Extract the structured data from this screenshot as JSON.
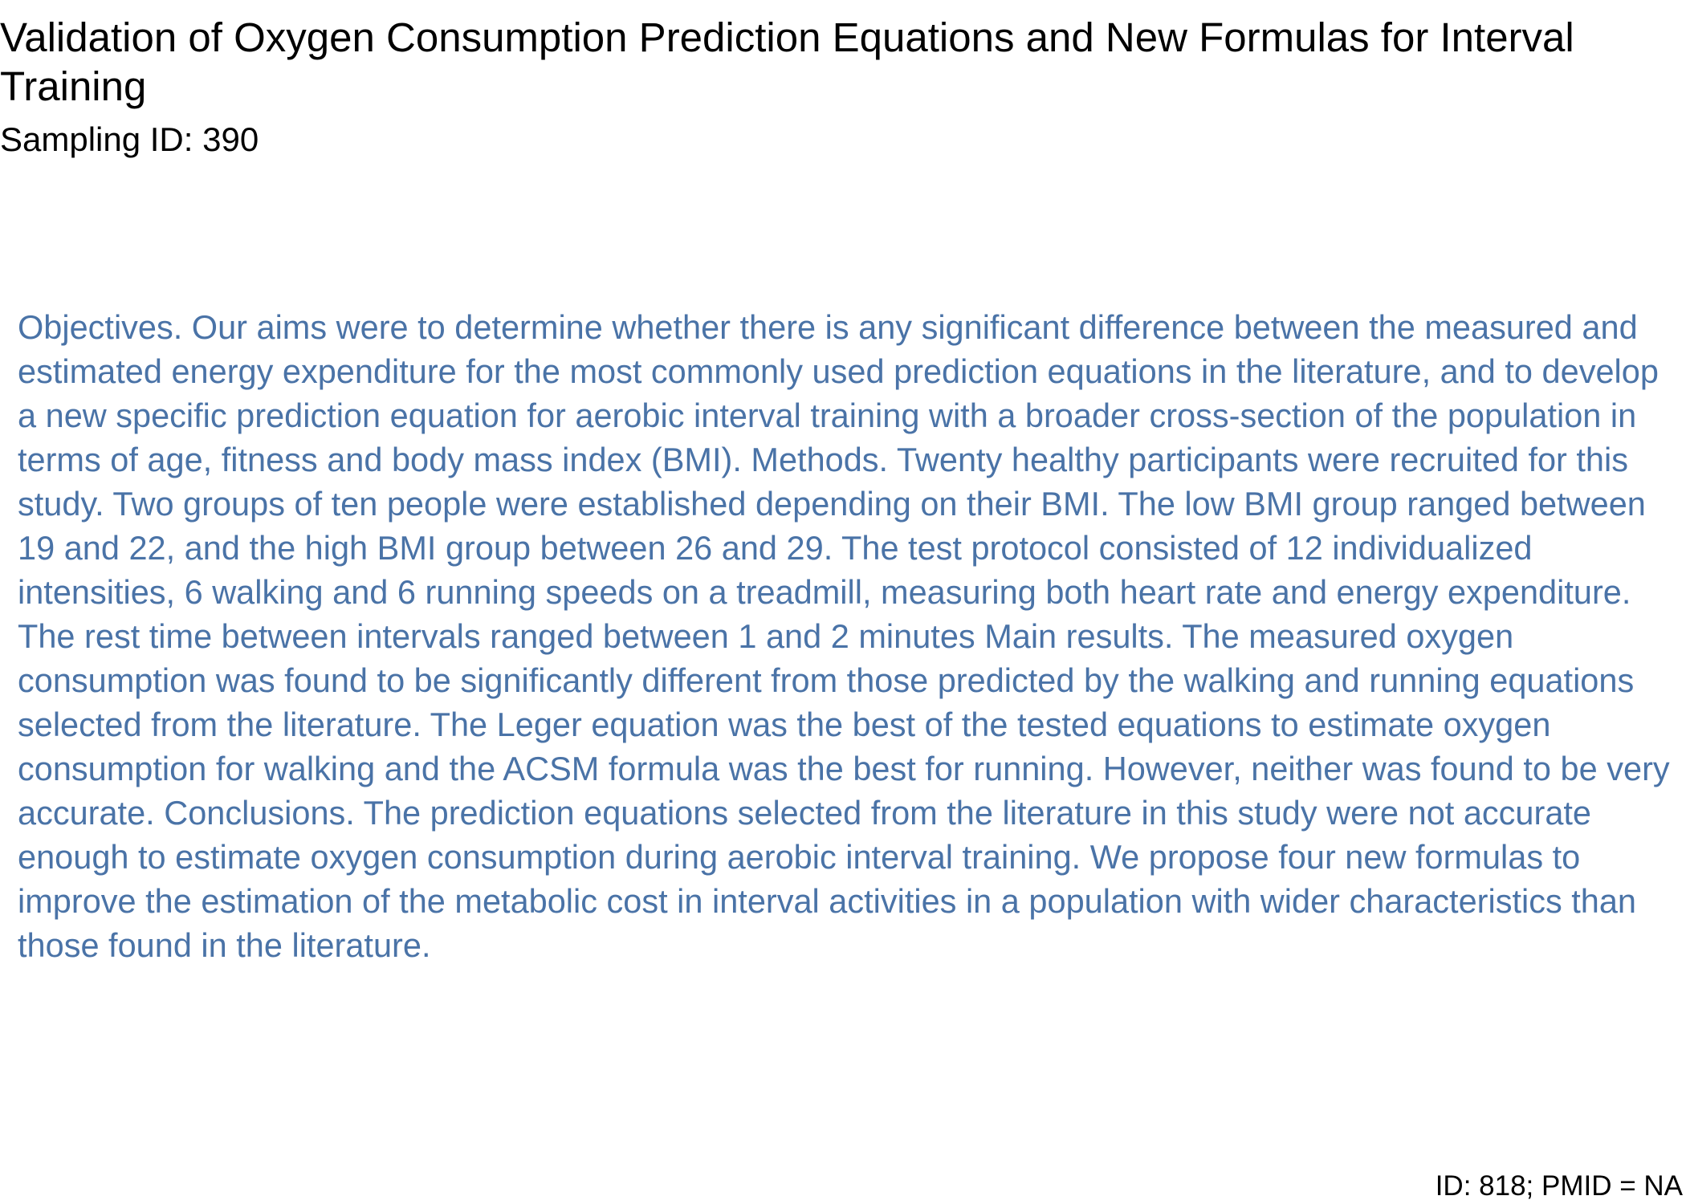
{
  "paper": {
    "title": "Validation of Oxygen Consumption Prediction Equations and New Formulas for Interval Training",
    "sampling_id": "Sampling ID: 390",
    "abstract": "Objectives. Our aims were to determine whether there is any significant difference between the measured and estimated energy expenditure for the most commonly used prediction equations in the literature, and to develop a new specific prediction equation for aerobic interval training with a broader cross-section of the population in terms of age, fitness and body mass index (BMI). Methods. Twenty healthy participants were recruited for this study. Two groups of ten people were established depending on their BMI. The low BMI group ranged between 19 and 22, and the high BMI group between 26 and 29. The test protocol consisted of 12 individualized intensities, 6 walking and 6 running speeds on a treadmill, measuring both heart rate and energy expenditure. The rest time between intervals ranged between 1 and 2 minutes Main results. The measured oxygen consumption was found to be significantly different from those predicted by the walking and running equations selected from the literature. The Leger equation was the best of the tested equations to estimate oxygen consumption for walking and the ACSM formula was the best for running. However, neither was found to be very accurate. Conclusions. The prediction equations selected from the literature in this study were not accurate enough to estimate oxygen consumption during aerobic interval training. We propose four new formulas to improve the estimation of the metabolic cost in interval activities in a population with wider characteristics than those found in the literature.",
    "footer_id": "ID: 818; PMID = NA"
  },
  "colors": {
    "abstract_text": "#4a73a7",
    "heading_text": "#000000",
    "background": "#ffffff"
  }
}
